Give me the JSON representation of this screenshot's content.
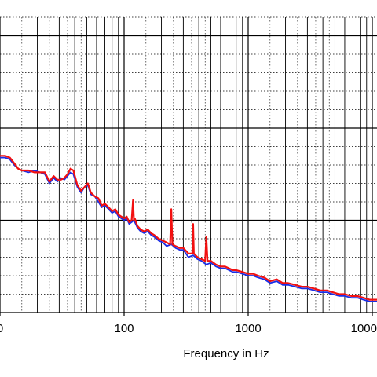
{
  "chart_data": {
    "type": "line",
    "title": "",
    "xlabel": "Frequency in Hz",
    "ylabel": "",
    "x_scale": "log",
    "xlim": [
      10,
      12000
    ],
    "ylim": [
      0,
      16
    ],
    "grid": true,
    "x_tick_labels": [
      "0",
      "100",
      "1000",
      "1000"
    ],
    "series": [
      {
        "color": "#1a2ee6",
        "x": [
          10,
          11,
          12,
          13,
          14,
          15,
          17,
          19,
          21,
          23,
          25,
          27,
          29,
          31,
          33,
          35,
          37,
          39,
          42,
          45,
          48,
          51,
          54,
          58,
          62,
          66,
          70,
          75,
          80,
          85,
          90,
          95,
          100,
          105,
          110,
          115,
          120,
          128,
          136,
          145,
          155,
          165,
          175,
          190,
          205,
          220,
          240,
          260,
          280,
          300,
          330,
          360,
          390,
          420,
          460,
          500,
          550,
          600,
          650,
          700,
          750,
          800,
          900,
          1000,
          1100,
          1200,
          1350,
          1500,
          1700,
          1900,
          2100,
          2400,
          2700,
          3000,
          3400,
          3800,
          4300,
          4800,
          5400,
          6000,
          6800,
          7600,
          8500,
          9500,
          10500,
          11500,
          12000
        ],
        "y": [
          8.4,
          8.4,
          8.3,
          8.0,
          7.8,
          7.7,
          7.6,
          7.7,
          7.6,
          7.5,
          7.0,
          7.3,
          7.1,
          7.3,
          7.2,
          7.4,
          7.6,
          7.5,
          6.8,
          6.5,
          6.8,
          6.9,
          6.4,
          6.3,
          6.0,
          5.7,
          5.8,
          5.6,
          5.4,
          5.5,
          5.2,
          5.1,
          5.0,
          5.1,
          4.8,
          4.9,
          5.0,
          4.6,
          4.4,
          4.3,
          4.4,
          4.2,
          4.1,
          3.9,
          3.8,
          3.6,
          3.7,
          3.5,
          3.4,
          3.4,
          3.0,
          3.1,
          2.9,
          2.8,
          2.6,
          2.7,
          2.5,
          2.4,
          2.4,
          2.3,
          2.2,
          2.2,
          2.1,
          2.0,
          2.0,
          1.9,
          1.8,
          1.6,
          1.7,
          1.5,
          1.5,
          1.4,
          1.3,
          1.3,
          1.2,
          1.1,
          1.1,
          1.0,
          0.9,
          0.9,
          0.8,
          0.8,
          0.7,
          0.6,
          0.6,
          0.6,
          0.5
        ]
      },
      {
        "color": "#f21010",
        "x": [
          10,
          11,
          12,
          13,
          14,
          15,
          17,
          19,
          21,
          23,
          25,
          27,
          29,
          31,
          33,
          35,
          37,
          39,
          42,
          45,
          48,
          51,
          54,
          58,
          62,
          66,
          70,
          75,
          80,
          85,
          90,
          95,
          100,
          105,
          110,
          115,
          118,
          120,
          122,
          128,
          136,
          145,
          155,
          165,
          175,
          190,
          205,
          220,
          235,
          240,
          245,
          260,
          280,
          300,
          330,
          355,
          360,
          365,
          390,
          420,
          450,
          460,
          470,
          500,
          550,
          600,
          650,
          700,
          750,
          800,
          900,
          1000,
          1100,
          1200,
          1350,
          1500,
          1700,
          1900,
          2100,
          2400,
          2700,
          3000,
          3400,
          3800,
          4300,
          4800,
          5400,
          6000,
          6800,
          7600,
          8500,
          9500,
          10500,
          11500,
          12000
        ],
        "y": [
          8.5,
          8.5,
          8.4,
          8.1,
          7.8,
          7.7,
          7.7,
          7.6,
          7.6,
          7.6,
          7.1,
          7.4,
          7.2,
          7.2,
          7.3,
          7.5,
          7.8,
          7.7,
          6.9,
          6.6,
          6.8,
          7.0,
          6.5,
          6.3,
          6.2,
          5.8,
          5.9,
          5.7,
          5.5,
          5.6,
          5.3,
          5.2,
          5.1,
          5.2,
          4.9,
          5.0,
          6.1,
          5.0,
          5.1,
          4.7,
          4.5,
          4.4,
          4.5,
          4.3,
          4.2,
          4.0,
          3.9,
          3.8,
          3.7,
          5.6,
          3.7,
          3.6,
          3.5,
          3.5,
          3.2,
          3.2,
          4.8,
          3.2,
          3.0,
          2.9,
          2.8,
          4.1,
          2.8,
          2.8,
          2.6,
          2.5,
          2.5,
          2.4,
          2.3,
          2.3,
          2.2,
          2.1,
          2.1,
          2.0,
          1.9,
          1.7,
          1.8,
          1.6,
          1.6,
          1.5,
          1.4,
          1.4,
          1.3,
          1.2,
          1.2,
          1.1,
          1.0,
          1.0,
          0.9,
          0.9,
          0.8,
          0.7,
          0.7,
          0.7,
          0.6
        ]
      }
    ]
  }
}
